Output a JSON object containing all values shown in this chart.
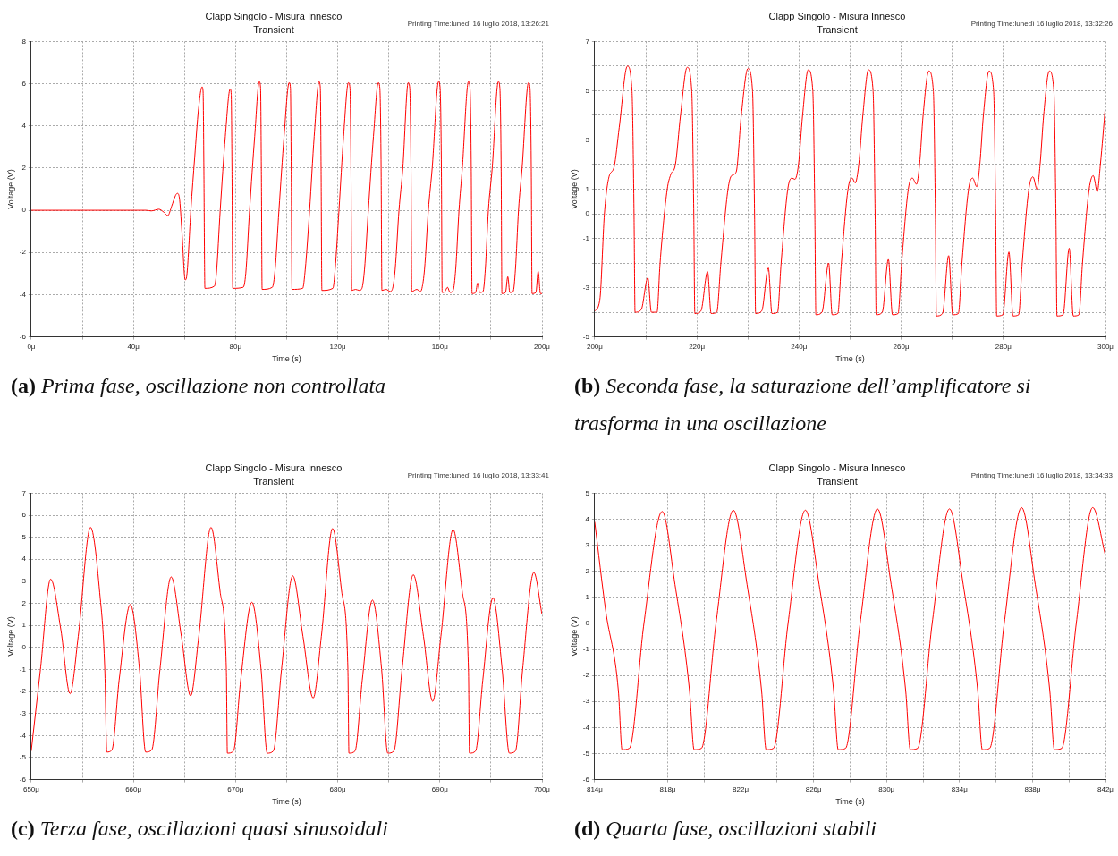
{
  "chart_data": [
    {
      "type": "line",
      "title": "Clapp Singolo - Misura Innesco",
      "subtitle": "Transient",
      "xlabel": "Time (s)",
      "ylabel": "Voltage (V)",
      "annotations": [
        "Printing Time:lunedì 16 luglio 2018, 13:26:21",
        "(a) Prima fase, oscillazione non controllata"
      ],
      "x": [
        0,
        45,
        47,
        50,
        52,
        53.5,
        55,
        56.5,
        57.2,
        58,
        59,
        60.3,
        61,
        62.5,
        64,
        65.5,
        66.9,
        67.3,
        67.6,
        68,
        71.7,
        72.5,
        74,
        76,
        77.9,
        78.3,
        78.6,
        78.9,
        83,
        84,
        85.5,
        87.5,
        89.3,
        89.8,
        90.1,
        90.4,
        94.4,
        95.5,
        97,
        99,
        101,
        101.5,
        101.8,
        102.1,
        106.3,
        107.3,
        109,
        110.8,
        112.7,
        113.2,
        113.5,
        113.8,
        118.1,
        119,
        120.5,
        122.3,
        124.2,
        124.8,
        125.2,
        125.5,
        127,
        128.5,
        129.5,
        130.5,
        132,
        134,
        135.9,
        136.5,
        137,
        137.3,
        139,
        140.5,
        141.5,
        142.5,
        144,
        145.5,
        147.6,
        148.2,
        148.7,
        149,
        151,
        152.3,
        153,
        154,
        155.5,
        157,
        159.5,
        160.1,
        160.6,
        160.9,
        162,
        163,
        164,
        165.2,
        166.2,
        167.5,
        168.8,
        171.2,
        171.8,
        172.3,
        172.6,
        174,
        174.8,
        175.6,
        176.9,
        177.8,
        179,
        180.5,
        182.9,
        183.5,
        184,
        184.3,
        185.7,
        186.6,
        187.4,
        188.7,
        189.6,
        190.8,
        192.2,
        194.7,
        195.3,
        195.8,
        196.1,
        197.6,
        198.5,
        199.4,
        200
      ],
      "series": [
        {
          "color": "#ff0000",
          "values": [
            0,
            0,
            -0.03,
            0.05,
            -0.1,
            -0.25,
            0.2,
            0.7,
            0.8,
            0.6,
            -1,
            -3.3,
            -3,
            0,
            2.5,
            4.8,
            5.85,
            5.6,
            2,
            -3.7,
            -3.6,
            -3,
            0,
            3.5,
            5.75,
            5.5,
            2,
            -3.7,
            -3.65,
            -3,
            0,
            3.5,
            6.1,
            5.8,
            2,
            -3.75,
            -3.65,
            -2.8,
            0,
            3.5,
            6.05,
            5.8,
            2,
            -3.75,
            -3.7,
            -2.8,
            0,
            3.5,
            6.1,
            5.8,
            2,
            -3.8,
            -3.7,
            -2.8,
            0,
            3.5,
            6.05,
            5.8,
            2,
            -3.8,
            -3.75,
            -3.8,
            -3.7,
            -2.8,
            0,
            3.5,
            6.05,
            5.8,
            2,
            -3.8,
            -3.75,
            -3.85,
            -3.7,
            -2.8,
            0,
            2,
            6.05,
            5.8,
            2,
            -3.85,
            -3.75,
            -3.85,
            -3.7,
            -2.8,
            0,
            2,
            6.1,
            5.8,
            2,
            -3.9,
            -3.85,
            -3.65,
            -3.9,
            -3.8,
            -2.8,
            0,
            2,
            6.1,
            5.8,
            2,
            -3.95,
            -3.9,
            -3.45,
            -3.9,
            -3.85,
            -2.8,
            0,
            2,
            6.1,
            5.8,
            2,
            -3.95,
            -3.9,
            -3.15,
            -3.9,
            -3.85,
            -2.8,
            0,
            2,
            6.05,
            5.8,
            2,
            -3.95,
            -3.9,
            -2.9,
            -3.95,
            -3.95
          ]
        }
      ],
      "xlim": [
        0,
        200
      ],
      "xticks": [
        {
          "value": 0,
          "label": "0μ"
        },
        {
          "value": 20,
          "label": null
        },
        {
          "value": 40,
          "label": "40μ"
        },
        {
          "value": 60,
          "label": null
        },
        {
          "value": 80,
          "label": "80μ"
        },
        {
          "value": 100,
          "label": null
        },
        {
          "value": 120,
          "label": "120μ"
        },
        {
          "value": 140,
          "label": null
        },
        {
          "value": 160,
          "label": "160μ"
        },
        {
          "value": 180,
          "label": null
        },
        {
          "value": 200,
          "label": "200μ"
        }
      ],
      "ylim": [
        -6,
        8
      ],
      "yticks": [
        -6,
        -4,
        -2,
        0,
        2,
        4,
        6,
        8
      ],
      "grid": true,
      "marker": "none",
      "line_style": "solid"
    },
    {
      "type": "line",
      "title": "Clapp Singolo - Misura Innesco",
      "subtitle": "Transient",
      "xlabel": "Time (s)",
      "ylabel": "Voltage (V)",
      "annotations": [
        "Printing Time:lunedì 16 luglio 2018, 13:32:26",
        "(b) Seconda fase, la saturazione dell’amplificatore si trasforma in una oscillazione"
      ],
      "x": [
        200,
        201,
        201.9,
        202.8,
        203.8,
        204.8,
        206.4,
        207.3,
        207.7,
        207.9,
        209.1,
        210.4,
        211.1,
        212.2,
        212.8,
        214.2,
        214.9,
        215.8,
        216.8,
        218.1,
        219.0,
        219.4,
        219.6,
        220.8,
        222.1,
        222.8,
        223.9,
        224.7,
        226.1,
        226.8,
        227.7,
        228.7,
        230.0,
        230.9,
        231.3,
        231.5,
        232.7,
        234.0,
        234.7,
        235.8,
        236.5,
        237.8,
        238.6,
        239.2,
        239.9,
        240.7,
        241.8,
        242.7,
        243.1,
        243.3,
        244.5,
        245.8,
        246.5,
        247.6,
        248.3,
        249.6,
        250.4,
        251.0,
        251.7,
        252.5,
        253.6,
        254.5,
        254.9,
        255.1,
        256.3,
        257.5,
        258.3,
        259.4,
        260.1,
        261.4,
        262.2,
        263.0,
        263.6,
        264.3,
        265.4,
        266.3,
        266.7,
        266.9,
        268.1,
        269.3,
        270.1,
        271.2,
        271.9,
        273.2,
        274.0,
        274.8,
        275.4,
        276.1,
        277.2,
        278.1,
        278.5,
        278.7,
        279.9,
        281.1,
        281.9,
        283.0,
        283.7,
        285.0,
        285.8,
        286.6,
        287.2,
        287.9,
        289.0,
        289.9,
        290.3,
        290.5,
        291.7,
        292.9,
        293.7,
        294.8,
        295.5,
        296.8,
        297.6,
        298.4,
        299,
        300
      ],
      "series": [
        {
          "color": "#ff0000",
          "values": [
            -3.95,
            -3.5,
            0,
            1.5,
            1.9,
            3.5,
            6.0,
            5,
            0,
            -4,
            -3.9,
            -2.6,
            -4,
            -4,
            -2,
            1,
            1.6,
            2,
            4,
            5.95,
            5,
            0,
            -4.05,
            -3.95,
            -2.35,
            -4.05,
            -4,
            -2,
            1,
            1.55,
            1.7,
            4,
            5.9,
            5,
            0,
            -4.05,
            -3.95,
            -2.2,
            -4.05,
            -4,
            -2,
            1,
            1.45,
            1.4,
            2,
            4,
            5.85,
            5,
            0,
            -4.1,
            -4,
            -2.0,
            -4.1,
            -4.05,
            -2,
            1,
            1.45,
            1.25,
            2,
            4,
            5.85,
            5,
            0,
            -4.1,
            -4,
            -1.85,
            -4.1,
            -4.05,
            -2,
            1,
            1.45,
            1.2,
            2,
            4,
            5.8,
            5,
            0,
            -4.15,
            -4.05,
            -1.7,
            -4.1,
            -4.05,
            -2,
            1,
            1.45,
            1.1,
            2,
            4,
            5.8,
            5,
            0,
            -4.15,
            -4.1,
            -1.55,
            -4.15,
            -4.1,
            -2,
            1,
            1.5,
            1.0,
            2,
            4,
            5.8,
            5,
            0,
            -4.15,
            -4.1,
            -1.4,
            -4.15,
            -4.1,
            -2,
            1,
            1.55,
            0.9,
            2,
            4.4
          ]
        }
      ],
      "xlim": [
        200,
        300
      ],
      "xticks": [
        {
          "value": 200,
          "label": "200μ"
        },
        {
          "value": 210,
          "label": null
        },
        {
          "value": 220,
          "label": "220μ"
        },
        {
          "value": 230,
          "label": null
        },
        {
          "value": 240,
          "label": "240μ"
        },
        {
          "value": 250,
          "label": null
        },
        {
          "value": 260,
          "label": "260μ"
        },
        {
          "value": 270,
          "label": null
        },
        {
          "value": 280,
          "label": "280μ"
        },
        {
          "value": 290,
          "label": null
        },
        {
          "value": 300,
          "label": "300μ"
        }
      ],
      "ylim": [
        -5,
        7
      ],
      "yticks": [
        -5,
        {
          "value": -4,
          "label": null
        },
        -3,
        {
          "value": -2,
          "label": null
        },
        -1,
        0,
        1,
        {
          "value": 2,
          "label": null
        },
        3,
        {
          "value": 4,
          "label": null
        },
        5,
        {
          "value": 6,
          "label": null
        },
        7
      ],
      "grid": true,
      "marker": "none",
      "line_style": "solid"
    },
    {
      "type": "line",
      "title": "Clapp Singolo - Misura Innesco",
      "subtitle": "Transient",
      "xlabel": "Time (s)",
      "ylabel": "Voltage (V)",
      "annotations": [
        "Printing Time:lunedì 16 luglio 2018, 13:33:41",
        "(c) Terza fase, oscillazioni quasi sinusoidali"
      ],
      "x": [
        650,
        650.9,
        651.9,
        652.9,
        653.8,
        654.6,
        655.8,
        656.7,
        657.2,
        657.4,
        657.9,
        658.6,
        659.7,
        660.6,
        661.2,
        661.8,
        662.6,
        663.7,
        664.7,
        665.6,
        666.4,
        667.6,
        668.5,
        669.1,
        669.2,
        669.8,
        670.5,
        671.6,
        672.5,
        673.1,
        673.7,
        674.5,
        675.6,
        676.6,
        677.6,
        678.4,
        679.5,
        680.4,
        681.0,
        681.1,
        681.7,
        682.4,
        683.4,
        684.3,
        684.9,
        685.5,
        686.3,
        687.4,
        688.4,
        689.3,
        690.1,
        691.3,
        692.2,
        692.8,
        692.9,
        693.5,
        694.2,
        695.2,
        696.1,
        696.8,
        697.4,
        698.1,
        699.2,
        700
      ],
      "series": [
        {
          "color": "#ff0000",
          "values": [
            -4.7,
            -1,
            3.1,
            0.8,
            -2.1,
            0.5,
            5.45,
            2.5,
            -1,
            -4.75,
            -4.65,
            -1.5,
            1.95,
            -1,
            -4.75,
            -4.65,
            -1,
            3.2,
            0.5,
            -2.2,
            0.5,
            5.45,
            2.5,
            -1,
            -4.8,
            -4.7,
            -1.5,
            2.05,
            -1,
            -4.8,
            -4.7,
            -1,
            3.25,
            0.5,
            -2.3,
            0.5,
            5.4,
            2.5,
            -1,
            -4.8,
            -4.7,
            -1.5,
            2.15,
            -1,
            -4.8,
            -4.7,
            -1,
            3.3,
            0.5,
            -2.45,
            0.5,
            5.35,
            2.5,
            -1,
            -4.8,
            -4.7,
            -1.5,
            2.25,
            -1,
            -4.8,
            -4.7,
            -1,
            3.4,
            1.5
          ]
        }
      ],
      "xlim": [
        650,
        700
      ],
      "xticks": [
        {
          "value": 650,
          "label": "650μ"
        },
        {
          "value": 655,
          "label": null
        },
        {
          "value": 660,
          "label": "660μ"
        },
        {
          "value": 665,
          "label": null
        },
        {
          "value": 670,
          "label": "670μ"
        },
        {
          "value": 675,
          "label": null
        },
        {
          "value": 680,
          "label": "680μ"
        },
        {
          "value": 685,
          "label": null
        },
        {
          "value": 690,
          "label": "690μ"
        },
        {
          "value": 695,
          "label": null
        },
        {
          "value": 700,
          "label": "700μ"
        }
      ],
      "ylim": [
        -6,
        7
      ],
      "yticks": [
        -6,
        -5,
        -4,
        -3,
        -2,
        -1,
        0,
        1,
        2,
        3,
        4,
        5,
        6,
        7
      ],
      "grid": true,
      "marker": "none",
      "line_style": "solid"
    },
    {
      "type": "line",
      "title": "Clapp Singolo - Misura Innesco",
      "subtitle": "Transient",
      "xlabel": "Time (s)",
      "ylabel": "Voltage (V)",
      "annotations": [
        "Printing Time:lunedì 16 luglio 2018, 13:34:33",
        "(d) Quarta fase, oscillazioni stabili"
      ],
      "x": [
        814,
        814.6,
        815.3,
        815.5,
        815.9,
        816.7,
        817.7,
        818.4,
        819.2,
        819.45,
        819.85,
        820.65,
        821.6,
        822.35,
        823.15,
        823.4,
        823.8,
        824.6,
        825.55,
        826.3,
        827.1,
        827.35,
        827.75,
        828.55,
        829.5,
        830.25,
        831.05,
        831.3,
        831.7,
        832.5,
        833.45,
        834.2,
        835.0,
        835.25,
        835.65,
        836.45,
        837.4,
        838.15,
        838.95,
        839.2,
        839.6,
        840.4,
        841.3,
        842
      ],
      "series": [
        {
          "color": "#ff0000",
          "values": [
            3.9,
            0.5,
            -2.6,
            -4.85,
            -4.8,
            0,
            4.3,
            1.5,
            -2.6,
            -4.85,
            -4.8,
            0,
            4.35,
            1.5,
            -2.6,
            -4.85,
            -4.8,
            0,
            4.35,
            1.5,
            -2.6,
            -4.85,
            -4.8,
            0,
            4.4,
            1.5,
            -2.6,
            -4.85,
            -4.8,
            0,
            4.4,
            1.5,
            -2.6,
            -4.85,
            -4.8,
            0,
            4.45,
            1.5,
            -2.6,
            -4.85,
            -4.8,
            0,
            4.45,
            2.6
          ]
        }
      ],
      "xlim": [
        814,
        842
      ],
      "xticks": [
        {
          "value": 814,
          "label": "814μ"
        },
        {
          "value": 816,
          "label": null
        },
        {
          "value": 818,
          "label": "818μ"
        },
        {
          "value": 820,
          "label": null
        },
        {
          "value": 822,
          "label": "822μ"
        },
        {
          "value": 824,
          "label": null
        },
        {
          "value": 826,
          "label": "826μ"
        },
        {
          "value": 828,
          "label": null
        },
        {
          "value": 830,
          "label": "830μ"
        },
        {
          "value": 832,
          "label": null
        },
        {
          "value": 834,
          "label": "834μ"
        },
        {
          "value": 836,
          "label": null
        },
        {
          "value": 838,
          "label": "838μ"
        },
        {
          "value": 840,
          "label": null
        },
        {
          "value": 842,
          "label": "842μ"
        }
      ],
      "ylim": [
        -6,
        5
      ],
      "yticks": [
        -6,
        -5,
        -4,
        -3,
        -2,
        -1,
        0,
        1,
        2,
        3,
        4,
        5
      ],
      "grid": true,
      "marker": "none",
      "line_style": "solid"
    }
  ]
}
